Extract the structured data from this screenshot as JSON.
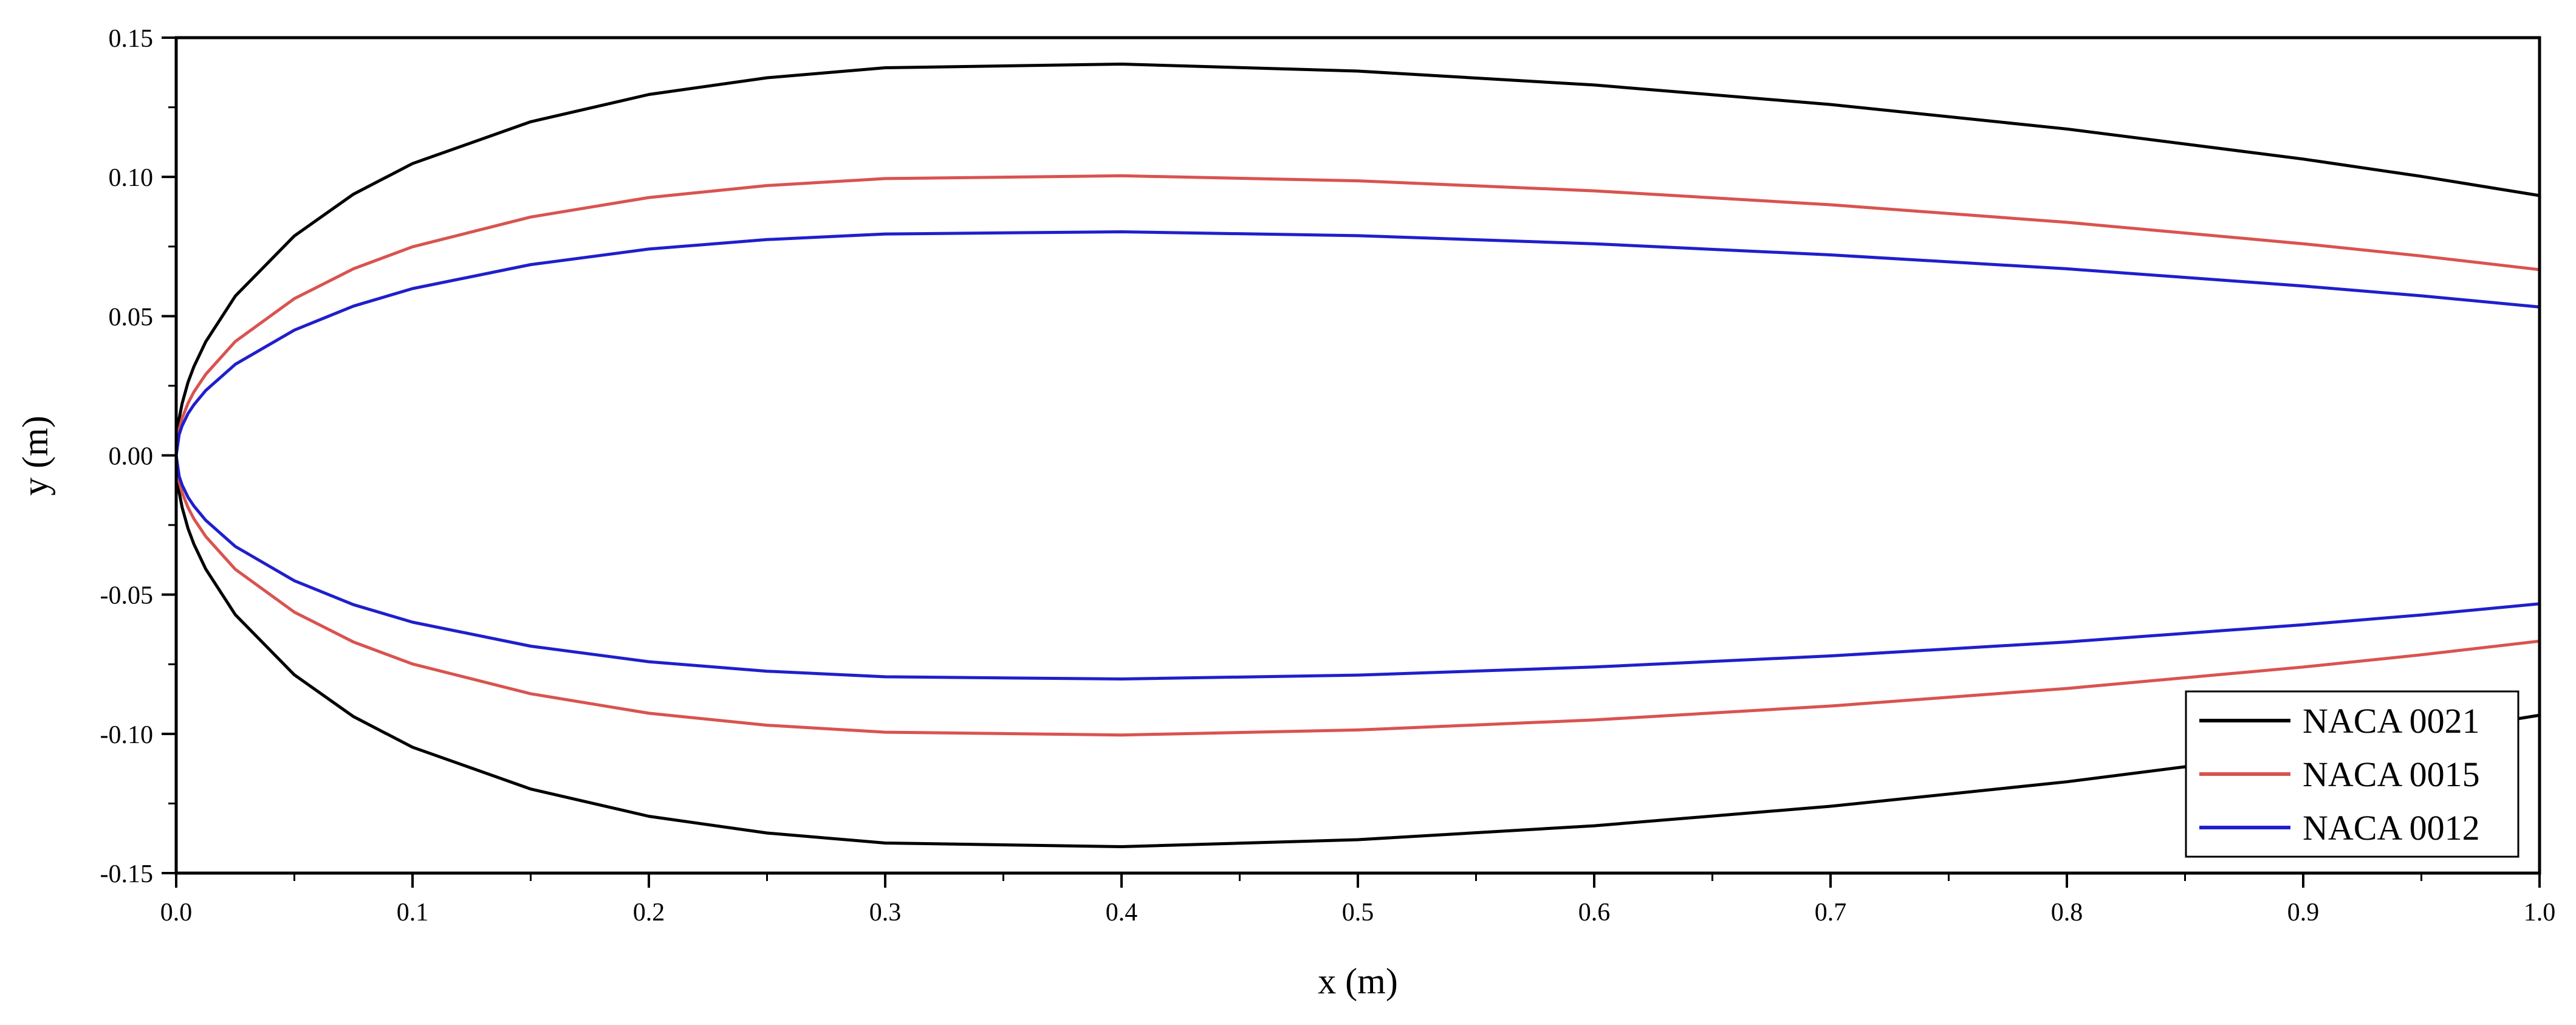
{
  "chart_data": {
    "type": "line",
    "title": "",
    "xlabel": "x (m)",
    "ylabel": "y (m)",
    "xlim": [
      0.0,
      1.0
    ],
    "ylim": [
      -0.15,
      0.15
    ],
    "xticks": [
      0.0,
      0.1,
      0.2,
      0.3,
      0.4,
      0.5,
      0.6,
      0.7,
      0.8,
      0.9,
      1.0
    ],
    "xtick_labels": [
      "0.0",
      "0.1",
      "0.2",
      "0.3",
      "0.4",
      "0.5",
      "0.6",
      "0.7",
      "0.8",
      "0.9",
      "1.0"
    ],
    "yticks": [
      -0.15,
      -0.1,
      -0.05,
      0.0,
      0.05,
      0.1,
      0.15
    ],
    "ytick_labels": [
      "-0.15",
      "-0.10",
      "-0.05",
      "0.00",
      "0.05",
      "0.10",
      "0.15"
    ],
    "grid": false,
    "legend_position": "bottom-right",
    "x": [
      0.0,
      0.00125,
      0.0025,
      0.005,
      0.0075,
      0.0125,
      0.025,
      0.05,
      0.075,
      0.1,
      0.15,
      0.2,
      0.25,
      0.3,
      0.4,
      0.5,
      0.6,
      0.7,
      0.8,
      0.9,
      0.95,
      1.0
    ],
    "series": [
      {
        "name": "NACA 0021",
        "color": "#000000",
        "upper": [
          0.0,
          0.0132,
          0.0186,
          0.0262,
          0.0319,
          0.0408,
          0.0572,
          0.0788,
          0.0938,
          0.1048,
          0.1198,
          0.1296,
          0.1356,
          0.1392,
          0.1405,
          0.138,
          0.133,
          0.126,
          0.1172,
          0.1064,
          0.1002,
          0.0933
        ],
        "lower": [
          0.0,
          -0.0132,
          -0.0186,
          -0.0262,
          -0.0319,
          -0.0408,
          -0.0572,
          -0.0788,
          -0.0938,
          -0.1048,
          -0.1198,
          -0.1296,
          -0.1356,
          -0.1392,
          -0.1405,
          -0.138,
          -0.133,
          -0.126,
          -0.1172,
          -0.1064,
          -0.1002,
          -0.0933
        ]
      },
      {
        "name": "NACA 0015",
        "color": "#d9534f",
        "upper": [
          0.0,
          0.0094,
          0.0133,
          0.0187,
          0.0228,
          0.0291,
          0.0409,
          0.0563,
          0.067,
          0.0749,
          0.0856,
          0.0926,
          0.0969,
          0.0994,
          0.1004,
          0.0986,
          0.095,
          0.09,
          0.0837,
          0.076,
          0.0716,
          0.0667
        ],
        "lower": [
          0.0,
          -0.0094,
          -0.0133,
          -0.0187,
          -0.0228,
          -0.0291,
          -0.0409,
          -0.0563,
          -0.067,
          -0.0749,
          -0.0856,
          -0.0926,
          -0.0969,
          -0.0994,
          -0.1004,
          -0.0986,
          -0.095,
          -0.09,
          -0.0837,
          -0.076,
          -0.0716,
          -0.0667
        ]
      },
      {
        "name": "NACA 0012",
        "color": "#1f1fcc",
        "upper": [
          0.0,
          0.0075,
          0.0106,
          0.015,
          0.0182,
          0.0233,
          0.0327,
          0.045,
          0.0536,
          0.0599,
          0.0685,
          0.0741,
          0.0775,
          0.0795,
          0.0803,
          0.0789,
          0.076,
          0.072,
          0.067,
          0.0608,
          0.0573,
          0.0533
        ],
        "lower": [
          0.0,
          -0.0075,
          -0.0106,
          -0.015,
          -0.0182,
          -0.0233,
          -0.0327,
          -0.045,
          -0.0536,
          -0.0599,
          -0.0685,
          -0.0741,
          -0.0775,
          -0.0795,
          -0.0803,
          -0.0789,
          -0.076,
          -0.072,
          -0.067,
          -0.0608,
          -0.0573,
          -0.0533
        ]
      }
    ]
  }
}
